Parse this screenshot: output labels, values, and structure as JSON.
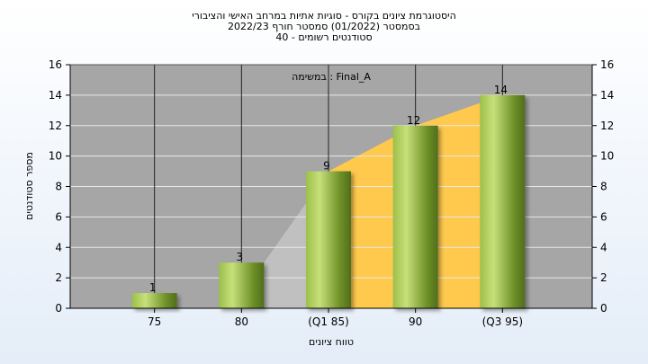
{
  "chart_data": {
    "type": "bar",
    "title_lines": [
      "היסטוגרמת ציונים בקורס - סוגיות אתיות במרחב האישי והציבורי",
      "בסמסטר  (01/2022)  סמסטר חורף 2022/23",
      "סטודנטים רשומים - 40"
    ],
    "annotation": "במשימה : Final_A",
    "categories": [
      "75",
      "80",
      "(Q1 85)",
      "90",
      "(Q3 95)"
    ],
    "values": [
      1,
      3,
      9,
      12,
      14
    ],
    "data_labels": [
      "1",
      "3",
      "9",
      "12",
      "14"
    ],
    "xlabel": "טווח ציונים",
    "ylabel": "מספר סטודנטים",
    "ylim": [
      0,
      16
    ],
    "yticks": [
      0,
      2,
      4,
      6,
      8,
      10,
      12,
      14,
      16
    ],
    "right_axis": true,
    "grid": true,
    "quartile_range": [
      "(Q1 85)",
      "(Q3 95)"
    ],
    "colors": {
      "plot_bg": "#a6a6a6",
      "bar_light": "#c6e07a",
      "bar_dark": "#4f6e1c",
      "interquartile_area": "#ffc94d",
      "grey_area": "#c0c0c0"
    }
  }
}
